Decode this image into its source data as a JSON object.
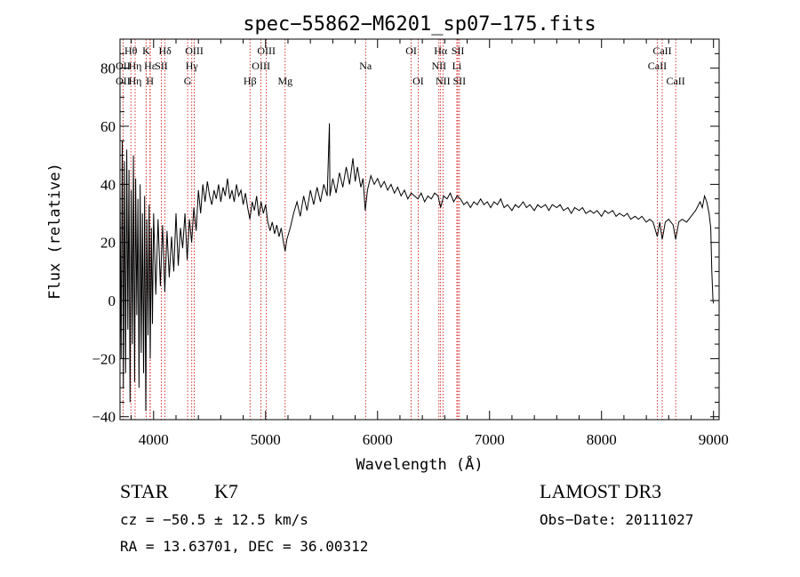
{
  "chart_data": {
    "type": "line",
    "title": "spec−55862−M6201_sp07−175.fits",
    "xlabel": "Wavelength (Å)",
    "ylabel": "Flux (relative)",
    "xlim": [
      3700,
      9050
    ],
    "ylim": [
      -41,
      90
    ],
    "xticks": [
      4000,
      5000,
      6000,
      7000,
      8000,
      9000
    ],
    "yticks": [
      -40,
      -20,
      0,
      20,
      40,
      60,
      80
    ],
    "series": [
      {
        "name": "flux",
        "points": [
          [
            3700,
            40
          ],
          [
            3710,
            -20
          ],
          [
            3720,
            55
          ],
          [
            3730,
            -30
          ],
          [
            3740,
            48
          ],
          [
            3750,
            -25
          ],
          [
            3760,
            52
          ],
          [
            3770,
            -10
          ],
          [
            3780,
            45
          ],
          [
            3790,
            -35
          ],
          [
            3800,
            38
          ],
          [
            3810,
            -15
          ],
          [
            3820,
            50
          ],
          [
            3830,
            -28
          ],
          [
            3840,
            42
          ],
          [
            3850,
            -5
          ],
          [
            3860,
            35
          ],
          [
            3870,
            -30
          ],
          [
            3880,
            40
          ],
          [
            3890,
            -18
          ],
          [
            3900,
            30
          ],
          [
            3910,
            -25
          ],
          [
            3920,
            36
          ],
          [
            3930,
            -38
          ],
          [
            3940,
            28
          ],
          [
            3950,
            -12
          ],
          [
            3960,
            33
          ],
          [
            3970,
            -20
          ],
          [
            3980,
            25
          ],
          [
            3990,
            -8
          ],
          [
            4000,
            30
          ],
          [
            4020,
            2
          ],
          [
            4040,
            28
          ],
          [
            4060,
            5
          ],
          [
            4080,
            26
          ],
          [
            4100,
            3
          ],
          [
            4120,
            24
          ],
          [
            4140,
            8
          ],
          [
            4160,
            22
          ],
          [
            4180,
            10
          ],
          [
            4200,
            30
          ],
          [
            4220,
            12
          ],
          [
            4240,
            25
          ],
          [
            4260,
            18
          ],
          [
            4280,
            30
          ],
          [
            4300,
            14
          ],
          [
            4320,
            28
          ],
          [
            4340,
            20
          ],
          [
            4360,
            32
          ],
          [
            4380,
            24
          ],
          [
            4400,
            38
          ],
          [
            4420,
            30
          ],
          [
            4440,
            40
          ],
          [
            4460,
            34
          ],
          [
            4480,
            41
          ],
          [
            4500,
            36
          ],
          [
            4520,
            33
          ],
          [
            4540,
            38
          ],
          [
            4560,
            35
          ],
          [
            4580,
            40
          ],
          [
            4600,
            34
          ],
          [
            4620,
            39
          ],
          [
            4640,
            36
          ],
          [
            4660,
            42
          ],
          [
            4680,
            35
          ],
          [
            4700,
            38
          ],
          [
            4720,
            34
          ],
          [
            4740,
            40
          ],
          [
            4760,
            36
          ],
          [
            4780,
            38
          ],
          [
            4800,
            33
          ],
          [
            4820,
            37
          ],
          [
            4840,
            32
          ],
          [
            4860,
            28
          ],
          [
            4880,
            34
          ],
          [
            4900,
            31
          ],
          [
            4920,
            36
          ],
          [
            4940,
            29
          ],
          [
            4960,
            34
          ],
          [
            4980,
            30
          ],
          [
            5000,
            33
          ],
          [
            5020,
            27
          ],
          [
            5040,
            24
          ],
          [
            5060,
            27
          ],
          [
            5080,
            23
          ],
          [
            5100,
            26
          ],
          [
            5120,
            22
          ],
          [
            5140,
            25
          ],
          [
            5160,
            20
          ],
          [
            5175,
            17
          ],
          [
            5190,
            21
          ],
          [
            5220,
            25
          ],
          [
            5250,
            30
          ],
          [
            5280,
            34
          ],
          [
            5310,
            29
          ],
          [
            5340,
            36
          ],
          [
            5370,
            31
          ],
          [
            5400,
            38
          ],
          [
            5430,
            33
          ],
          [
            5460,
            39
          ],
          [
            5490,
            34
          ],
          [
            5520,
            40
          ],
          [
            5550,
            36
          ],
          [
            5570,
            61
          ],
          [
            5575,
            36
          ],
          [
            5600,
            42
          ],
          [
            5630,
            37
          ],
          [
            5660,
            44
          ],
          [
            5690,
            39
          ],
          [
            5720,
            46
          ],
          [
            5750,
            40
          ],
          [
            5780,
            49
          ],
          [
            5800,
            41
          ],
          [
            5820,
            46
          ],
          [
            5850,
            39
          ],
          [
            5870,
            42
          ],
          [
            5890,
            31
          ],
          [
            5910,
            38
          ],
          [
            5940,
            43
          ],
          [
            5970,
            40
          ],
          [
            6000,
            42
          ],
          [
            6030,
            39
          ],
          [
            6060,
            41
          ],
          [
            6090,
            38
          ],
          [
            6120,
            40
          ],
          [
            6150,
            37
          ],
          [
            6180,
            39
          ],
          [
            6210,
            36
          ],
          [
            6240,
            38
          ],
          [
            6270,
            35
          ],
          [
            6300,
            37
          ],
          [
            6330,
            36
          ],
          [
            6360,
            35
          ],
          [
            6390,
            37
          ],
          [
            6420,
            34
          ],
          [
            6450,
            36
          ],
          [
            6480,
            35
          ],
          [
            6510,
            37
          ],
          [
            6540,
            36
          ],
          [
            6563,
            32
          ],
          [
            6590,
            36
          ],
          [
            6620,
            35
          ],
          [
            6650,
            37
          ],
          [
            6680,
            34
          ],
          [
            6710,
            36
          ],
          [
            6740,
            35
          ],
          [
            6770,
            33
          ],
          [
            6800,
            34
          ],
          [
            6830,
            32
          ],
          [
            6860,
            34
          ],
          [
            6890,
            33
          ],
          [
            6920,
            35
          ],
          [
            6950,
            33
          ],
          [
            6980,
            34
          ],
          [
            7010,
            32
          ],
          [
            7040,
            34
          ],
          [
            7070,
            33
          ],
          [
            7100,
            35
          ],
          [
            7130,
            32
          ],
          [
            7160,
            33
          ],
          [
            7200,
            31
          ],
          [
            7230,
            33
          ],
          [
            7260,
            32
          ],
          [
            7300,
            34
          ],
          [
            7330,
            32
          ],
          [
            7360,
            33
          ],
          [
            7400,
            31
          ],
          [
            7430,
            33
          ],
          [
            7460,
            32
          ],
          [
            7500,
            33
          ],
          [
            7530,
            31
          ],
          [
            7560,
            33
          ],
          [
            7600,
            32
          ],
          [
            7630,
            33
          ],
          [
            7660,
            31
          ],
          [
            7700,
            32
          ],
          [
            7730,
            30
          ],
          [
            7760,
            32
          ],
          [
            7800,
            31
          ],
          [
            7830,
            32
          ],
          [
            7860,
            30
          ],
          [
            7900,
            31
          ],
          [
            7930,
            30
          ],
          [
            7960,
            31
          ],
          [
            8000,
            29
          ],
          [
            8030,
            31
          ],
          [
            8060,
            30
          ],
          [
            8100,
            31
          ],
          [
            8130,
            29
          ],
          [
            8160,
            30
          ],
          [
            8200,
            29
          ],
          [
            8230,
            30
          ],
          [
            8260,
            28
          ],
          [
            8300,
            29
          ],
          [
            8330,
            28
          ],
          [
            8360,
            29
          ],
          [
            8400,
            27
          ],
          [
            8430,
            28
          ],
          [
            8460,
            27
          ],
          [
            8498,
            22
          ],
          [
            8520,
            27
          ],
          [
            8542,
            21
          ],
          [
            8570,
            27
          ],
          [
            8600,
            28
          ],
          [
            8640,
            26
          ],
          [
            8662,
            21
          ],
          [
            8690,
            27
          ],
          [
            8720,
            28
          ],
          [
            8760,
            27
          ],
          [
            8800,
            29
          ],
          [
            8840,
            31
          ],
          [
            8880,
            34
          ],
          [
            8900,
            32
          ],
          [
            8920,
            36
          ],
          [
            8940,
            34
          ],
          [
            8960,
            30
          ],
          [
            8975,
            25
          ],
          [
            8985,
            10
          ],
          [
            8995,
            0
          ],
          [
            9000,
            -1
          ]
        ]
      }
    ],
    "lines": [
      {
        "label": "Hθ",
        "x": 3797,
        "row": 0
      },
      {
        "label": "OII",
        "x": 3727,
        "row": 1
      },
      {
        "label": "OII",
        "x": 3727,
        "row": 2
      },
      {
        "label": "Hη",
        "x": 3835,
        "row": 1
      },
      {
        "label": "Hη",
        "x": 3835,
        "row": 2
      },
      {
        "label": "K",
        "x": 3934,
        "row": 0
      },
      {
        "label": "Hε",
        "x": 3970,
        "row": 1
      },
      {
        "label": "H",
        "x": 3968,
        "row": 2
      },
      {
        "label": "Hδ",
        "x": 4102,
        "row": 0
      },
      {
        "label": "SII",
        "x": 4069,
        "row": 1
      },
      {
        "label": "OIII",
        "x": 4363,
        "row": 0
      },
      {
        "label": "Hγ",
        "x": 4341,
        "row": 1
      },
      {
        "label": "G",
        "x": 4304,
        "row": 2
      },
      {
        "label": "Hβ",
        "x": 4861,
        "row": 2
      },
      {
        "label": "OIII",
        "x": 5007,
        "row": 0
      },
      {
        "label": "OIII",
        "x": 4959,
        "row": 1
      },
      {
        "label": "Mg",
        "x": 5175,
        "row": 2
      },
      {
        "label": "Na",
        "x": 5893,
        "row": 1
      },
      {
        "label": "OI",
        "x": 6300,
        "row": 0
      },
      {
        "label": "OI",
        "x": 6363,
        "row": 2
      },
      {
        "label": "Hα",
        "x": 6563,
        "row": 0
      },
      {
        "label": "NII",
        "x": 6548,
        "row": 1
      },
      {
        "label": "NII",
        "x": 6584,
        "row": 2
      },
      {
        "label": "SII",
        "x": 6717,
        "row": 0
      },
      {
        "label": "Li",
        "x": 6708,
        "row": 1
      },
      {
        "label": "SII",
        "x": 6731,
        "row": 2
      },
      {
        "label": "CaII",
        "x": 8542,
        "row": 0
      },
      {
        "label": "CaII",
        "x": 8498,
        "row": 1
      },
      {
        "label": "CaII",
        "x": 8662,
        "row": 2
      }
    ]
  },
  "info": {
    "class": "STAR",
    "subclass": "K7",
    "survey": "LAMOST DR3",
    "cz": "cz = −50.5 ± 12.5 km/s",
    "obs_date": "Obs−Date: 20111027",
    "radec": "RA =  13.63701, DEC =  36.00312"
  }
}
